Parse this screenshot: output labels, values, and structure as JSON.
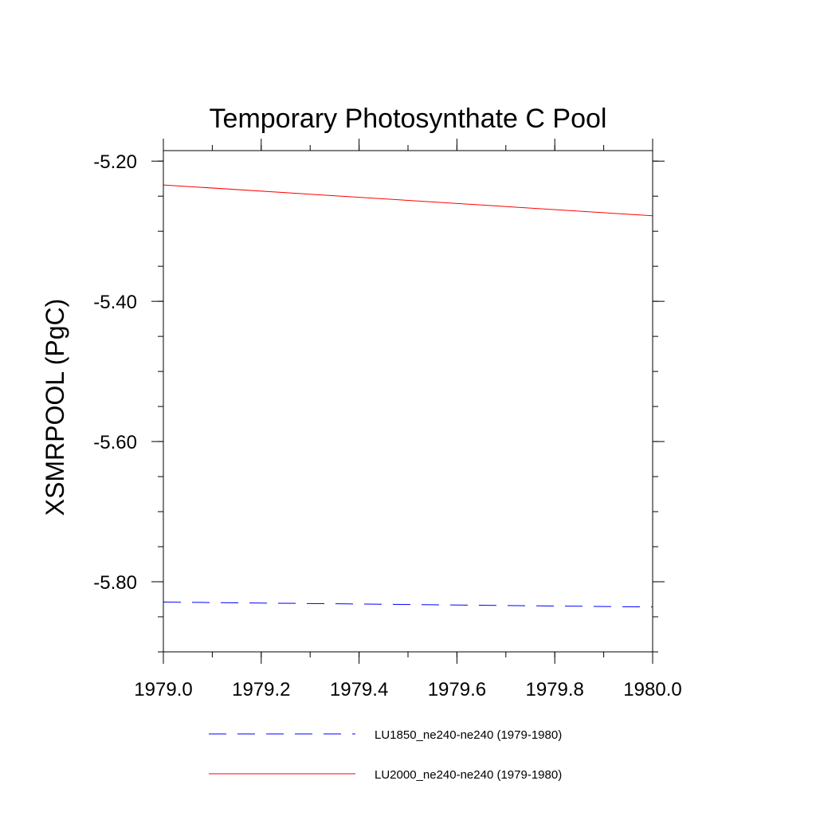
{
  "chart_data": {
    "type": "line",
    "title": "Temporary Photosynthate C Pool",
    "xlabel": "",
    "ylabel": "XSMRPOOL  (PgC)",
    "xlim": [
      1979.0,
      1980.0
    ],
    "ylim": [
      -5.9,
      -5.185
    ],
    "x_ticks": [
      1979.0,
      1979.2,
      1979.4,
      1979.6,
      1979.8,
      1980.0
    ],
    "x_tick_labels": [
      "1979.0",
      "1979.2",
      "1979.4",
      "1979.6",
      "1979.8",
      "1980.0"
    ],
    "y_ticks": [
      -5.2,
      -5.4,
      -5.6,
      -5.8
    ],
    "y_tick_labels": [
      "-5.20",
      "-5.40",
      "-5.60",
      "-5.80"
    ],
    "y_minor_step": 0.05,
    "x_minor_step": 0.1,
    "grid": false,
    "legend_position": "bottom",
    "series": [
      {
        "name": "LU1850_ne240-ne240 (1979-1980)",
        "color": "#0000ff",
        "dash": "dashed",
        "x": [
          1979.0,
          1980.0
        ],
        "y": [
          -5.829,
          -5.836
        ]
      },
      {
        "name": "LU2000_ne240-ne240 (1979-1980)",
        "color": "#ff0000",
        "dash": "solid",
        "x": [
          1979.0,
          1980.0
        ],
        "y": [
          -5.234,
          -5.278
        ]
      }
    ]
  }
}
